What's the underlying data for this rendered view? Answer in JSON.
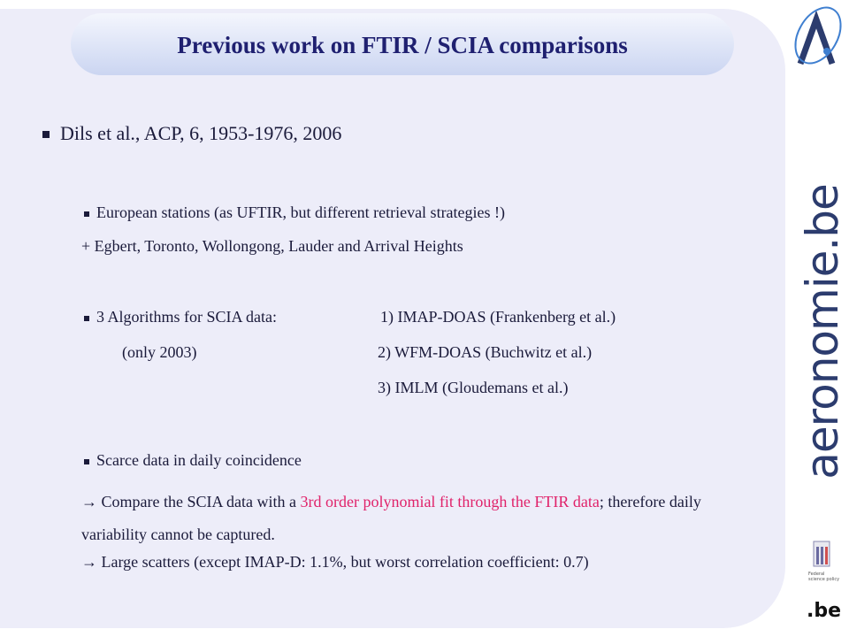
{
  "title": "Previous work on FTIR / SCIA comparisons",
  "reference": "Dils et al., ACP, 6, 1953-1976, 2006",
  "stations": {
    "bullet": "European stations (as UFTIR, but different retrieval strategies !)",
    "extra": "+ Egbert, Toronto, Wollongong, Lauder and Arrival Heights"
  },
  "algorithms": {
    "bullet": "3 Algorithms for SCIA data:",
    "note": "(only 2003)",
    "list": [
      "1) IMAP-DOAS (Frankenberg et al.)",
      "2) WFM-DOAS (Buchwitz et al.)",
      "3) IMLM (Gloudemans et al.)"
    ]
  },
  "coincidence": {
    "bullet": "Scarce data in daily coincidence",
    "compare": {
      "before": "→ Compare the SCIA data with a ",
      "highlight": "3rd order polynomial fit through the FTIR data",
      "after": "; therefore daily variability cannot be captured."
    },
    "scatter": "→ Large scatters (except IMAP-D: 1.1%, but worst correlation coefficient: 0.7)"
  },
  "logos": {
    "site": "aeronomie.be",
    "policy": "Federal science policy",
    "domain": ".be"
  }
}
